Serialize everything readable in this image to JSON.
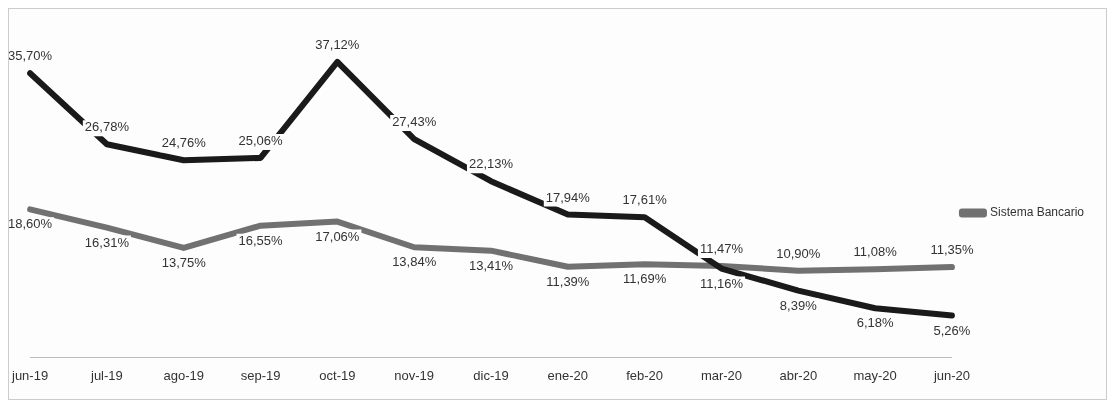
{
  "chart_data": {
    "type": "line",
    "categories": [
      "jun-19",
      "jul-19",
      "ago-19",
      "sep-19",
      "oct-19",
      "nov-19",
      "dic-19",
      "ene-20",
      "feb-20",
      "mar-20",
      "abr-20",
      "may-20",
      "jun-20"
    ],
    "series": [
      {
        "color": "#1a1a1a",
        "values": [
          35.7,
          26.78,
          24.76,
          25.06,
          37.12,
          27.43,
          22.13,
          17.94,
          17.61,
          11.16,
          8.39,
          6.18,
          5.26
        ],
        "value_labels": [
          "35,70%",
          "26,78%",
          "24,76%",
          "25,06%",
          "37,12%",
          "27,43%",
          "22,13%",
          "17,94%",
          "17,61%",
          "11,16%",
          "8,39%",
          "6,18%",
          "5,26%"
        ]
      },
      {
        "name": "Sistema Bancario",
        "color": "#717171",
        "values": [
          18.6,
          16.31,
          13.75,
          16.55,
          17.06,
          13.84,
          13.41,
          11.39,
          11.69,
          11.47,
          10.9,
          11.08,
          11.35
        ],
        "value_labels": [
          "18,60%",
          "16,31%",
          "13,75%",
          "16,55%",
          "17,06%",
          "13,84%",
          "13,41%",
          "11,39%",
          "11,69%",
          "11,47%",
          "10,90%",
          "11,08%",
          "11,35%"
        ]
      }
    ],
    "legend": "right",
    "grid": false,
    "marker": "none",
    "line_style": "solid"
  }
}
